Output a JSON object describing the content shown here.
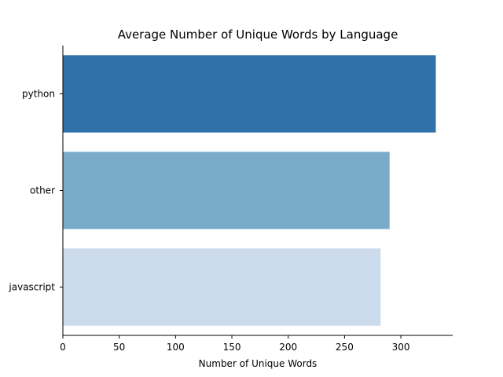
{
  "chart_data": {
    "type": "bar",
    "orientation": "horizontal",
    "title": "Average Number of Unique Words by Language",
    "xlabel": "Number of Unique Words",
    "ylabel": "",
    "categories": [
      "python",
      "other",
      "javascript"
    ],
    "values": [
      331,
      290,
      282
    ],
    "colors": [
      "#3171a9",
      "#7aacca",
      "#ccdcec"
    ],
    "xlim": [
      0,
      346
    ],
    "xticks": [
      0,
      50,
      100,
      150,
      200,
      250,
      300
    ],
    "grid": false,
    "legend": "none"
  }
}
